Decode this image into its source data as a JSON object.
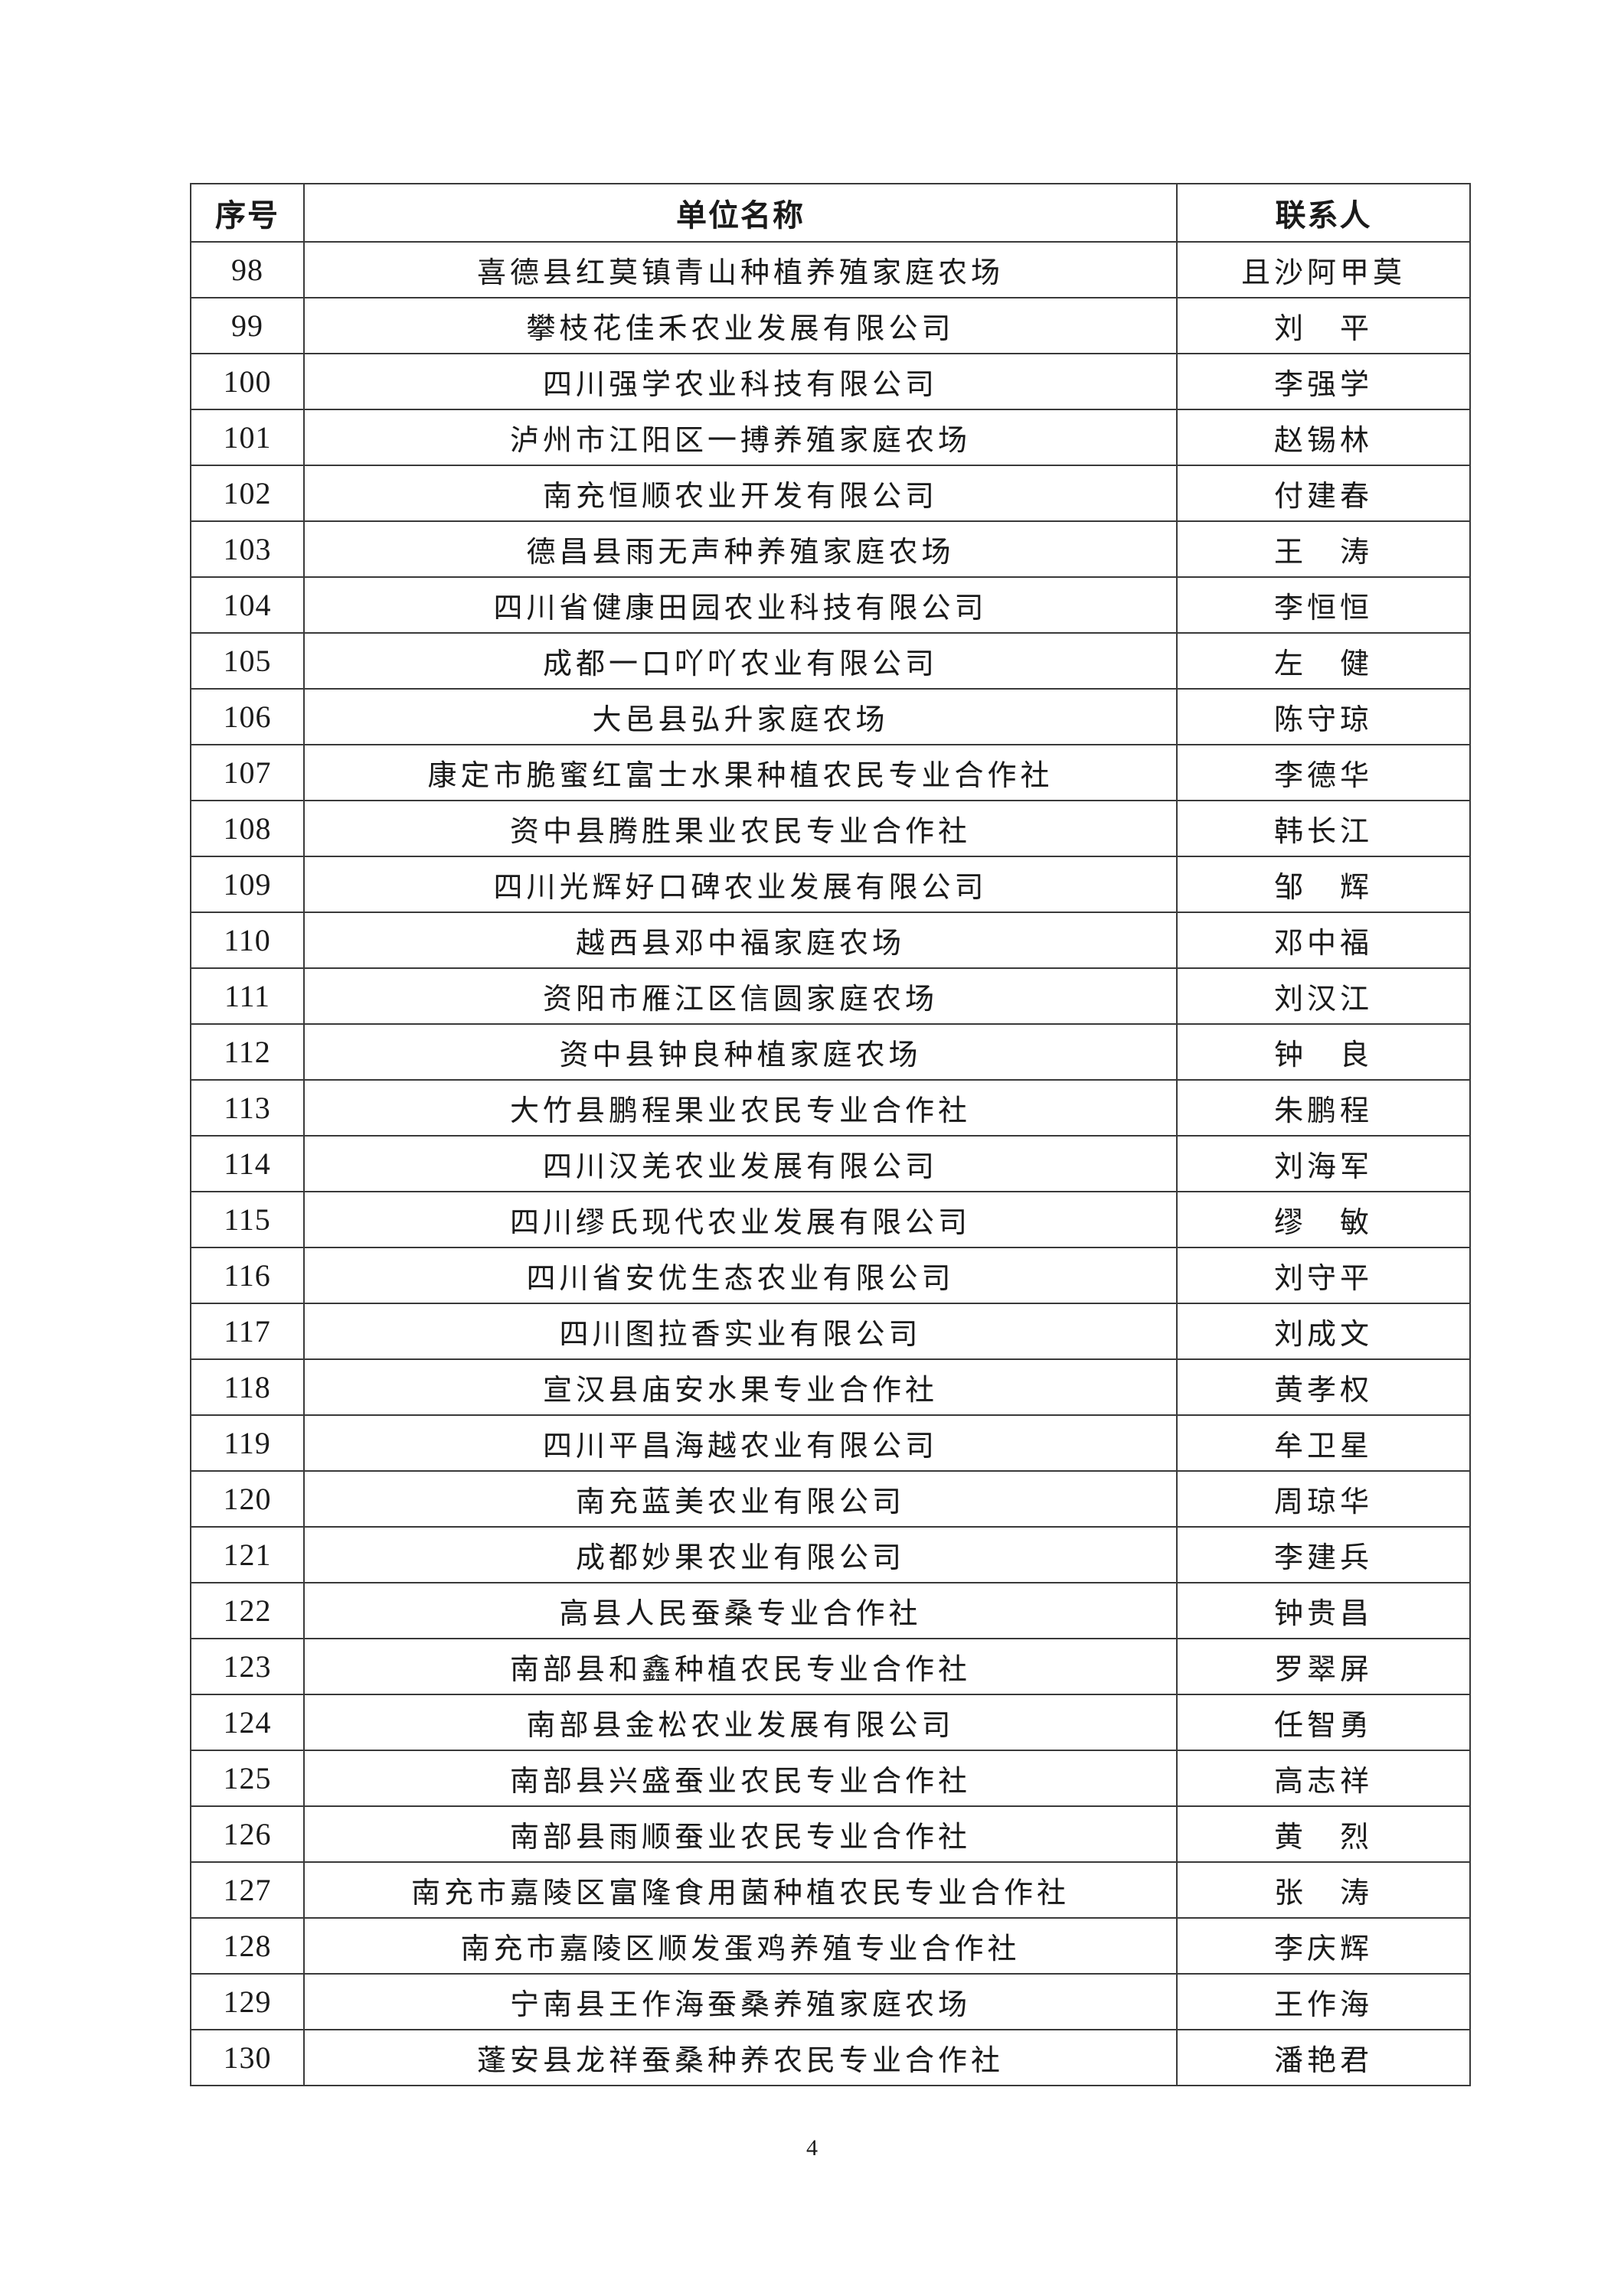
{
  "table": {
    "headers": [
      "序号",
      "单位名称",
      "联系人"
    ],
    "rows": [
      [
        "98",
        "喜德县红莫镇青山种植养殖家庭农场",
        "且沙阿甲莫"
      ],
      [
        "99",
        "攀枝花佳禾农业发展有限公司",
        "刘　平"
      ],
      [
        "100",
        "四川强学农业科技有限公司",
        "李强学"
      ],
      [
        "101",
        "泸州市江阳区一搏养殖家庭农场",
        "赵锡林"
      ],
      [
        "102",
        "南充恒顺农业开发有限公司",
        "付建春"
      ],
      [
        "103",
        "德昌县雨无声种养殖家庭农场",
        "王　涛"
      ],
      [
        "104",
        "四川省健康田园农业科技有限公司",
        "李恒恒"
      ],
      [
        "105",
        "成都一口吖吖农业有限公司",
        "左　健"
      ],
      [
        "106",
        "大邑县弘升家庭农场",
        "陈守琼"
      ],
      [
        "107",
        "康定市脆蜜红富士水果种植农民专业合作社",
        "李德华"
      ],
      [
        "108",
        "资中县腾胜果业农民专业合作社",
        "韩长江"
      ],
      [
        "109",
        "四川光辉好口碑农业发展有限公司",
        "邹　辉"
      ],
      [
        "110",
        "越西县邓中福家庭农场",
        "邓中福"
      ],
      [
        "111",
        "资阳市雁江区信圆家庭农场",
        "刘汉江"
      ],
      [
        "112",
        "资中县钟良种植家庭农场",
        "钟　良"
      ],
      [
        "113",
        "大竹县鹏程果业农民专业合作社",
        "朱鹏程"
      ],
      [
        "114",
        "四川汉羌农业发展有限公司",
        "刘海军"
      ],
      [
        "115",
        "四川缪氏现代农业发展有限公司",
        "缪　敏"
      ],
      [
        "116",
        "四川省安优生态农业有限公司",
        "刘守平"
      ],
      [
        "117",
        "四川图拉香实业有限公司",
        "刘成文"
      ],
      [
        "118",
        "宣汉县庙安水果专业合作社",
        "黄孝权"
      ],
      [
        "119",
        "四川平昌海越农业有限公司",
        "牟卫星"
      ],
      [
        "120",
        "南充蓝美农业有限公司",
        "周琼华"
      ],
      [
        "121",
        "成都妙果农业有限公司",
        "李建兵"
      ],
      [
        "122",
        "高县人民蚕桑专业合作社",
        "钟贵昌"
      ],
      [
        "123",
        "南部县和鑫种植农民专业合作社",
        "罗翠屏"
      ],
      [
        "124",
        "南部县金松农业发展有限公司",
        "任智勇"
      ],
      [
        "125",
        "南部县兴盛蚕业农民专业合作社",
        "高志祥"
      ],
      [
        "126",
        "南部县雨顺蚕业农民专业合作社",
        "黄　烈"
      ],
      [
        "127",
        "南充市嘉陵区富隆食用菌种植农民专业合作社",
        "张　涛"
      ],
      [
        "128",
        "南充市嘉陵区顺发蛋鸡养殖专业合作社",
        "李庆辉"
      ],
      [
        "129",
        "宁南县王作海蚕桑养殖家庭农场",
        "王作海"
      ],
      [
        "130",
        "蓬安县龙祥蚕桑种养农民专业合作社",
        "潘艳君"
      ]
    ]
  },
  "page_number": "4"
}
